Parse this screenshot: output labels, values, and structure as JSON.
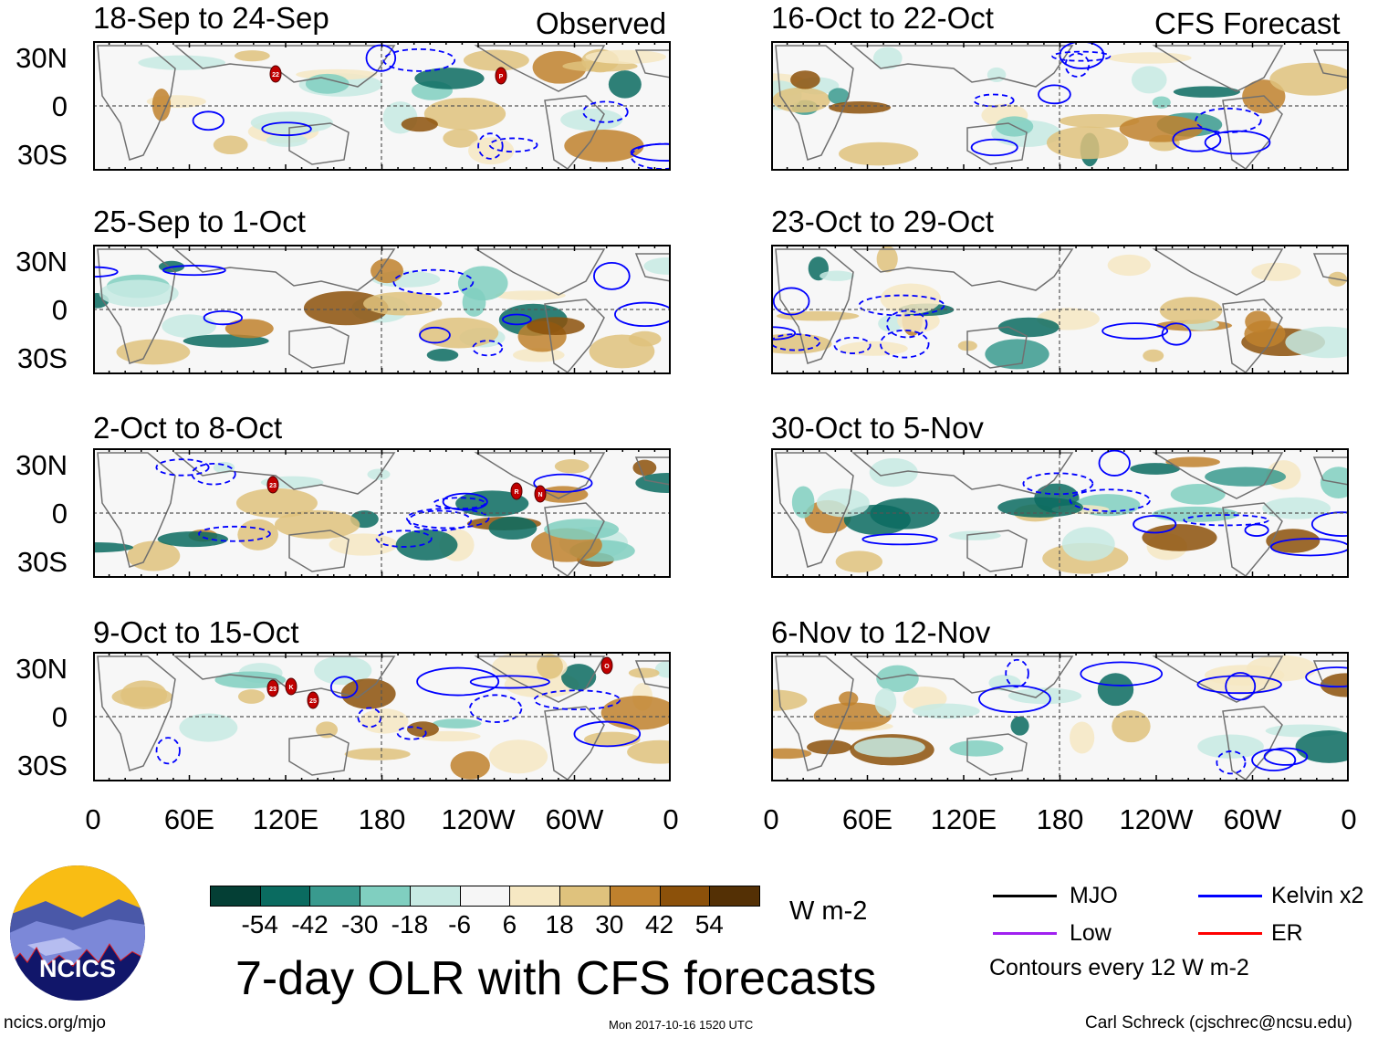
{
  "figure": {
    "title": "7-day OLR with CFS forecasts",
    "left_column_label": "Observed",
    "right_column_label": "CFS Forecast",
    "website": "ncics.org/mjo",
    "timestamp": "Mon 2017-10-16 1520 UTC",
    "author": "Carl Schreck (cjschrec@ncsu.edu)",
    "logo_text": "NCICS"
  },
  "axes": {
    "lat_labels": [
      "30N",
      "0",
      "30S"
    ],
    "lon_labels": [
      "0",
      "60E",
      "120E",
      "180",
      "120W",
      "60W",
      "0"
    ]
  },
  "panels": [
    {
      "title": "18-Sep to 24-Sep",
      "storms": [
        "22",
        "P"
      ]
    },
    {
      "title": "25-Sep to 1-Oct",
      "storms": []
    },
    {
      "title": "2-Oct to 8-Oct",
      "storms": [
        "23",
        "R",
        "N"
      ]
    },
    {
      "title": "9-Oct to 15-Oct",
      "storms": [
        "23",
        "K",
        "25",
        "O"
      ]
    },
    {
      "title": "16-Oct to 22-Oct",
      "storms": []
    },
    {
      "title": "23-Oct to 29-Oct",
      "storms": []
    },
    {
      "title": "30-Oct to 5-Nov",
      "storms": []
    },
    {
      "title": "6-Nov to 12-Nov",
      "storms": []
    }
  ],
  "colorbar": {
    "units": "W m-2",
    "colors": [
      "#043f35",
      "#0a6b60",
      "#399a8e",
      "#80cfc0",
      "#c7eae3",
      "#f6f6f6",
      "#f6e8c3",
      "#dfc27d",
      "#bf812d",
      "#8c510a",
      "#543005"
    ],
    "labels": [
      "-54",
      "-42",
      "-30",
      "-18",
      "-6",
      "6",
      "18",
      "30",
      "42",
      "54"
    ]
  },
  "legend": {
    "items": [
      {
        "label": "MJO",
        "color": "#000000"
      },
      {
        "label": "Kelvin x2",
        "color": "#0000ff"
      },
      {
        "label": "Low",
        "color": "#a020f0"
      },
      {
        "label": "ER",
        "color": "#ff0000"
      }
    ],
    "note": "Contours every 12 W m-2"
  }
}
